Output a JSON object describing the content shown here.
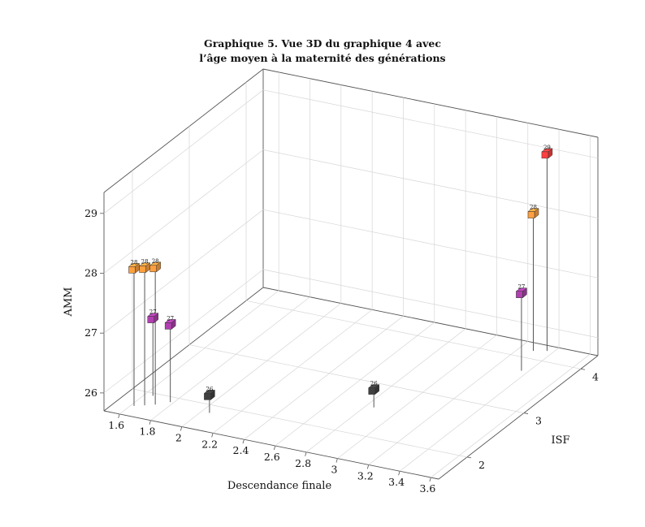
{
  "chart_data": {
    "type": "scatter3d",
    "title_lines": [
      "Graphique 5.  Vue 3D du graphique 4 avec",
      "l’âge moyen à la maternité des générations"
    ],
    "xlabel": "Descendance finale",
    "ylabel": "ISF",
    "zlabel": "AMM",
    "xlim": [
      1.5,
      3.65
    ],
    "ylim": [
      1.5,
      4.3
    ],
    "zlim": [
      25.7,
      29.35
    ],
    "x_ticks": [
      "1.6",
      "1.8",
      "2",
      "2.2",
      "2.4",
      "2.6",
      "2.8",
      "3",
      "3.2",
      "3.4",
      "3.6"
    ],
    "y_ticks": [
      "2",
      "3",
      "4"
    ],
    "z_ticks": [
      "26",
      "27",
      "28",
      "29"
    ],
    "grid": true,
    "points": [
      {
        "x": 1.62,
        "y": 1.7,
        "z": 28.0,
        "label": "28",
        "color": "#ffa040"
      },
      {
        "x": 1.67,
        "y": 1.75,
        "z": 28.0,
        "label": "28",
        "color": "#ffa040"
      },
      {
        "x": 1.72,
        "y": 1.8,
        "z": 28.0,
        "label": "28",
        "color": "#ffa040"
      },
      {
        "x": 1.65,
        "y": 1.95,
        "z": 27.0,
        "label": "27",
        "color": "#b040b0"
      },
      {
        "x": 1.78,
        "y": 1.9,
        "z": 27.0,
        "label": "27",
        "color": "#b040b0"
      },
      {
        "x": 2.05,
        "y": 1.85,
        "z": 26.0,
        "label": "26",
        "color": "#404040"
      },
      {
        "x": 2.85,
        "y": 2.55,
        "z": 26.0,
        "label": "26",
        "color": "#404040"
      },
      {
        "x": 3.36,
        "y": 3.75,
        "z": 27.0,
        "label": "27",
        "color": "#b040b0"
      },
      {
        "x": 3.29,
        "y": 4.15,
        "z": 28.0,
        "label": "28",
        "color": "#ffa040"
      },
      {
        "x": 3.36,
        "y": 4.2,
        "z": 29.0,
        "label": "29",
        "color": "#ff4040"
      }
    ]
  }
}
